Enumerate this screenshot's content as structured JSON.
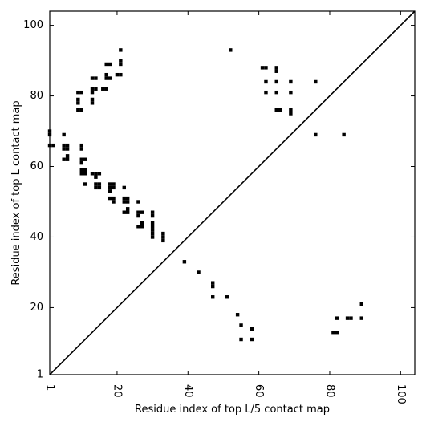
{
  "chart_data": {
    "type": "heatmap",
    "xlabel": "Residue index of top L/5 contact map",
    "ylabel": "Residue index of top L contact map",
    "xlim": [
      1,
      104
    ],
    "ylim": [
      1,
      104
    ],
    "xticks": [
      1,
      20,
      40,
      60,
      80,
      100
    ],
    "yticks": [
      1,
      20,
      40,
      60,
      80,
      100
    ],
    "xtick_labels": [
      "1",
      "20",
      "40",
      "60",
      "80",
      "100"
    ],
    "ytick_labels": [
      "1",
      "20",
      "40",
      "60",
      "80",
      "100"
    ],
    "xtick_rotation_deg": 90,
    "grid": false,
    "diagonal_line": true,
    "cell_color": "#000000",
    "background_color": "#ffffff",
    "upper_triangle_contacts": [
      [
        1,
        70
      ],
      [
        1,
        69
      ],
      [
        1,
        66
      ],
      [
        2,
        66
      ],
      [
        5,
        69
      ],
      [
        5,
        65
      ],
      [
        5,
        66
      ],
      [
        6,
        65
      ],
      [
        6,
        66
      ],
      [
        5,
        62
      ],
      [
        6,
        62
      ],
      [
        6,
        63
      ],
      [
        9,
        81
      ],
      [
        10,
        81
      ],
      [
        9,
        79
      ],
      [
        9,
        78
      ],
      [
        9,
        76
      ],
      [
        10,
        76
      ],
      [
        10,
        66
      ],
      [
        10,
        65
      ],
      [
        10,
        62
      ],
      [
        11,
        62
      ],
      [
        10,
        61
      ],
      [
        10,
        59
      ],
      [
        11,
        59
      ],
      [
        10,
        58
      ],
      [
        11,
        58
      ],
      [
        11,
        55
      ],
      [
        13,
        85
      ],
      [
        14,
        85
      ],
      [
        13,
        82
      ],
      [
        14,
        82
      ],
      [
        13,
        81
      ],
      [
        13,
        79
      ],
      [
        13,
        78
      ],
      [
        13,
        58
      ],
      [
        14,
        58
      ],
      [
        15,
        58
      ],
      [
        14,
        57
      ],
      [
        14,
        55
      ],
      [
        15,
        55
      ],
      [
        14,
        54
      ],
      [
        15,
        54
      ],
      [
        16,
        82
      ],
      [
        17,
        82
      ],
      [
        17,
        89
      ],
      [
        18,
        89
      ],
      [
        17,
        86
      ],
      [
        17,
        85
      ],
      [
        18,
        85
      ],
      [
        18,
        55
      ],
      [
        19,
        55
      ],
      [
        18,
        54
      ],
      [
        19,
        54
      ],
      [
        18,
        53
      ],
      [
        18,
        51
      ],
      [
        19,
        51
      ],
      [
        19,
        50
      ],
      [
        21,
        93
      ],
      [
        21,
        90
      ],
      [
        21,
        89
      ],
      [
        20,
        86
      ],
      [
        21,
        86
      ],
      [
        22,
        54
      ],
      [
        22,
        51
      ],
      [
        23,
        51
      ],
      [
        22,
        50
      ],
      [
        23,
        50
      ],
      [
        22,
        47
      ],
      [
        23,
        47
      ],
      [
        23,
        48
      ],
      [
        26,
        50
      ],
      [
        26,
        47
      ],
      [
        27,
        47
      ],
      [
        26,
        46
      ],
      [
        27,
        44
      ],
      [
        26,
        43
      ],
      [
        27,
        43
      ],
      [
        30,
        47
      ],
      [
        30,
        46
      ],
      [
        30,
        44
      ],
      [
        30,
        43
      ],
      [
        30,
        42
      ],
      [
        30,
        41
      ],
      [
        30,
        40
      ],
      [
        33,
        41
      ],
      [
        33,
        40
      ],
      [
        33,
        39
      ],
      [
        52,
        93
      ],
      [
        61,
        88
      ],
      [
        62,
        88
      ],
      [
        65,
        88
      ],
      [
        65,
        87
      ],
      [
        62,
        84
      ],
      [
        65,
        84
      ],
      [
        69,
        84
      ],
      [
        76,
        84
      ],
      [
        62,
        81
      ],
      [
        65,
        81
      ],
      [
        69,
        81
      ],
      [
        65,
        76
      ],
      [
        66,
        76
      ],
      [
        69,
        76
      ],
      [
        69,
        75
      ],
      [
        76,
        69
      ],
      [
        84,
        69
      ]
    ],
    "lower_triangle_contacts": [
      [
        39,
        33
      ],
      [
        43,
        30
      ],
      [
        47,
        27
      ],
      [
        47,
        26
      ],
      [
        47,
        23
      ],
      [
        51,
        23
      ],
      [
        54,
        18
      ],
      [
        55,
        15
      ],
      [
        58,
        14
      ],
      [
        55,
        11
      ],
      [
        58,
        11
      ],
      [
        81,
        13
      ],
      [
        82,
        13
      ],
      [
        82,
        17
      ],
      [
        85,
        17
      ],
      [
        86,
        17
      ],
      [
        89,
        17
      ],
      [
        89,
        21
      ]
    ]
  }
}
